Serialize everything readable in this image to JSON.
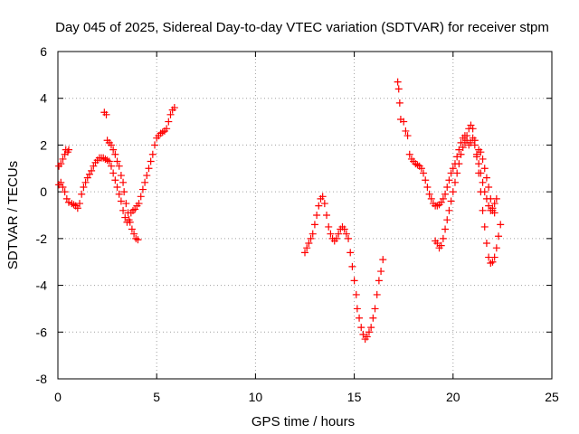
{
  "chart_data": {
    "type": "scatter",
    "title": "Day 045 of 2025, Sidereal Day-to-day VTEC variation (SDTVAR) for receiver stpm",
    "xlabel": "GPS time / hours",
    "ylabel": "SDTVAR / TECUs",
    "xlim": [
      0,
      25
    ],
    "ylim": [
      -8,
      6
    ],
    "xticks": [
      "0",
      "5",
      "10",
      "15",
      "20",
      "25"
    ],
    "yticks": [
      "-8",
      "-6",
      "-4",
      "-2",
      "0",
      "2",
      "4",
      "6"
    ],
    "grid": true,
    "marker": "plus",
    "color": "#ff0000",
    "series": [
      {
        "points": [
          [
            0.05,
            1.1
          ],
          [
            0.15,
            1.2
          ],
          [
            0.25,
            1.4
          ],
          [
            0.35,
            1.6
          ],
          [
            0.4,
            1.8
          ],
          [
            0.5,
            1.7
          ],
          [
            0.55,
            1.8
          ],
          [
            0.05,
            0.3
          ],
          [
            0.15,
            0.4
          ],
          [
            0.25,
            0.2
          ],
          [
            0.35,
            0.0
          ],
          [
            0.45,
            -0.3
          ],
          [
            0.55,
            -0.45
          ],
          [
            0.7,
            -0.5
          ],
          [
            0.8,
            -0.55
          ],
          [
            0.9,
            -0.6
          ],
          [
            1.0,
            -0.7
          ],
          [
            1.1,
            -0.5
          ],
          [
            1.2,
            -0.1
          ],
          [
            1.3,
            0.2
          ],
          [
            1.4,
            0.4
          ],
          [
            1.5,
            0.6
          ],
          [
            1.6,
            0.75
          ],
          [
            1.7,
            0.9
          ],
          [
            1.8,
            1.1
          ],
          [
            1.9,
            1.25
          ],
          [
            2.0,
            1.35
          ],
          [
            2.1,
            1.45
          ],
          [
            2.2,
            1.45
          ],
          [
            2.3,
            1.45
          ],
          [
            2.4,
            1.4
          ],
          [
            2.5,
            1.35
          ],
          [
            2.6,
            1.3
          ],
          [
            2.7,
            1.1
          ],
          [
            2.8,
            0.8
          ],
          [
            2.9,
            0.5
          ],
          [
            3.0,
            0.2
          ],
          [
            3.1,
            -0.1
          ],
          [
            3.2,
            -0.4
          ],
          [
            3.3,
            -0.8
          ],
          [
            3.4,
            -1.1
          ],
          [
            3.5,
            -1.3
          ],
          [
            3.6,
            -1.2
          ],
          [
            3.7,
            -0.9
          ],
          [
            3.8,
            -0.8
          ],
          [
            3.9,
            -0.75
          ],
          [
            4.0,
            -0.6
          ],
          [
            2.35,
            3.4
          ],
          [
            2.45,
            3.3
          ],
          [
            2.5,
            2.2
          ],
          [
            2.6,
            2.1
          ],
          [
            2.7,
            2.0
          ],
          [
            2.8,
            1.8
          ],
          [
            2.9,
            1.6
          ],
          [
            3.0,
            1.3
          ],
          [
            3.1,
            1.1
          ],
          [
            3.2,
            0.7
          ],
          [
            3.3,
            0.4
          ],
          [
            3.35,
            0.0
          ],
          [
            3.45,
            -0.5
          ],
          [
            3.55,
            -0.9
          ],
          [
            3.65,
            -1.3
          ],
          [
            3.75,
            -1.6
          ],
          [
            3.85,
            -1.8
          ],
          [
            3.95,
            -2.0
          ],
          [
            4.05,
            -2.05
          ],
          [
            4.1,
            -0.5
          ],
          [
            4.2,
            -0.2
          ],
          [
            4.3,
            0.1
          ],
          [
            4.4,
            0.4
          ],
          [
            4.5,
            0.7
          ],
          [
            4.6,
            1.0
          ],
          [
            4.7,
            1.3
          ],
          [
            4.8,
            1.6
          ],
          [
            4.9,
            2.0
          ],
          [
            5.0,
            2.3
          ],
          [
            5.1,
            2.4
          ],
          [
            5.2,
            2.5
          ],
          [
            5.3,
            2.55
          ],
          [
            5.4,
            2.6
          ],
          [
            5.5,
            2.7
          ],
          [
            5.6,
            3.0
          ],
          [
            5.7,
            3.3
          ],
          [
            5.8,
            3.5
          ],
          [
            5.9,
            3.6
          ]
        ]
      },
      {
        "points": [
          [
            12.5,
            -2.6
          ],
          [
            12.6,
            -2.4
          ],
          [
            12.7,
            -2.2
          ],
          [
            12.8,
            -2.0
          ],
          [
            12.9,
            -1.8
          ],
          [
            13.0,
            -1.4
          ],
          [
            13.1,
            -1.0
          ],
          [
            13.2,
            -0.6
          ],
          [
            13.3,
            -0.3
          ],
          [
            13.4,
            -0.2
          ],
          [
            13.5,
            -0.5
          ],
          [
            13.6,
            -1.0
          ],
          [
            13.7,
            -1.5
          ],
          [
            13.8,
            -1.8
          ],
          [
            13.9,
            -2.0
          ],
          [
            14.0,
            -2.1
          ],
          [
            14.1,
            -2.0
          ],
          [
            14.2,
            -1.8
          ],
          [
            14.3,
            -1.6
          ],
          [
            14.4,
            -1.5
          ],
          [
            14.5,
            -1.6
          ],
          [
            14.6,
            -1.8
          ],
          [
            14.7,
            -2.0
          ],
          [
            14.8,
            -2.6
          ],
          [
            14.9,
            -3.2
          ],
          [
            15.0,
            -3.8
          ],
          [
            15.1,
            -4.4
          ],
          [
            15.15,
            -5.0
          ],
          [
            15.25,
            -5.4
          ],
          [
            15.35,
            -5.8
          ],
          [
            15.45,
            -6.1
          ],
          [
            15.55,
            -6.3
          ],
          [
            15.65,
            -6.2
          ],
          [
            15.75,
            -6.0
          ],
          [
            15.85,
            -5.8
          ],
          [
            15.95,
            -5.4
          ],
          [
            16.05,
            -5.0
          ],
          [
            16.15,
            -4.4
          ],
          [
            16.25,
            -3.8
          ],
          [
            16.35,
            -3.4
          ],
          [
            16.45,
            -2.9
          ]
        ]
      },
      {
        "points": [
          [
            17.2,
            4.7
          ],
          [
            17.25,
            4.4
          ],
          [
            17.3,
            3.8
          ],
          [
            17.35,
            3.1
          ],
          [
            17.5,
            3.0
          ],
          [
            17.6,
            2.6
          ],
          [
            17.7,
            2.4
          ],
          [
            17.8,
            1.6
          ],
          [
            17.9,
            1.4
          ],
          [
            18.0,
            1.3
          ],
          [
            18.1,
            1.2
          ],
          [
            18.2,
            1.15
          ],
          [
            18.3,
            1.1
          ],
          [
            18.4,
            1.0
          ],
          [
            18.5,
            0.8
          ],
          [
            18.6,
            0.5
          ],
          [
            18.7,
            0.2
          ],
          [
            18.8,
            -0.1
          ],
          [
            18.9,
            -0.3
          ],
          [
            19.0,
            -0.5
          ],
          [
            19.1,
            -0.6
          ],
          [
            19.2,
            -0.6
          ],
          [
            19.3,
            -0.55
          ],
          [
            19.4,
            -0.45
          ],
          [
            19.5,
            -0.3
          ],
          [
            19.6,
            -0.1
          ],
          [
            19.7,
            0.2
          ],
          [
            19.8,
            0.5
          ],
          [
            19.9,
            0.8
          ],
          [
            20.0,
            1.0
          ],
          [
            20.1,
            1.2
          ],
          [
            20.2,
            1.5
          ],
          [
            20.3,
            1.8
          ],
          [
            20.4,
            2.1
          ],
          [
            20.5,
            2.3
          ],
          [
            20.6,
            2.4
          ],
          [
            20.7,
            2.2
          ],
          [
            20.8,
            2.0
          ],
          [
            20.9,
            2.1
          ],
          [
            21.0,
            2.3
          ],
          [
            21.1,
            2.0
          ],
          [
            21.2,
            1.6
          ],
          [
            21.3,
            1.2
          ],
          [
            21.4,
            0.8
          ],
          [
            21.5,
            0.4
          ],
          [
            21.6,
            0.0
          ],
          [
            21.7,
            -0.3
          ],
          [
            21.8,
            -0.6
          ],
          [
            21.9,
            -0.8
          ],
          [
            22.0,
            -0.7
          ],
          [
            22.1,
            -0.5
          ],
          [
            22.2,
            -0.3
          ],
          [
            19.1,
            -2.1
          ],
          [
            19.2,
            -2.2
          ],
          [
            19.3,
            -2.4
          ],
          [
            19.4,
            -2.3
          ],
          [
            19.5,
            -2.0
          ],
          [
            19.6,
            -1.6
          ],
          [
            19.7,
            -1.2
          ],
          [
            19.8,
            -0.8
          ],
          [
            19.9,
            -0.4
          ],
          [
            20.0,
            0.0
          ],
          [
            20.1,
            0.4
          ],
          [
            20.2,
            0.8
          ],
          [
            20.3,
            1.2
          ],
          [
            20.4,
            1.6
          ],
          [
            20.5,
            1.9
          ],
          [
            20.6,
            2.1
          ],
          [
            20.7,
            2.4
          ],
          [
            20.8,
            2.7
          ],
          [
            20.9,
            2.85
          ],
          [
            21.0,
            2.7
          ],
          [
            21.1,
            2.2
          ],
          [
            21.2,
            1.5
          ],
          [
            21.3,
            0.8
          ],
          [
            21.4,
            0.0
          ],
          [
            21.5,
            -0.8
          ],
          [
            21.6,
            -1.5
          ],
          [
            21.7,
            -2.2
          ],
          [
            21.8,
            -2.8
          ],
          [
            21.9,
            -3.05
          ],
          [
            22.0,
            -3.0
          ],
          [
            22.1,
            -2.8
          ],
          [
            22.2,
            -2.4
          ],
          [
            22.3,
            -1.9
          ],
          [
            22.4,
            -1.4
          ],
          [
            21.3,
            1.8
          ],
          [
            21.4,
            1.7
          ],
          [
            21.5,
            1.4
          ],
          [
            21.6,
            1.0
          ],
          [
            21.7,
            0.6
          ],
          [
            21.8,
            0.2
          ],
          [
            21.9,
            -0.3
          ],
          [
            22.0,
            -0.8
          ],
          [
            22.1,
            -0.9
          ]
        ]
      }
    ]
  }
}
